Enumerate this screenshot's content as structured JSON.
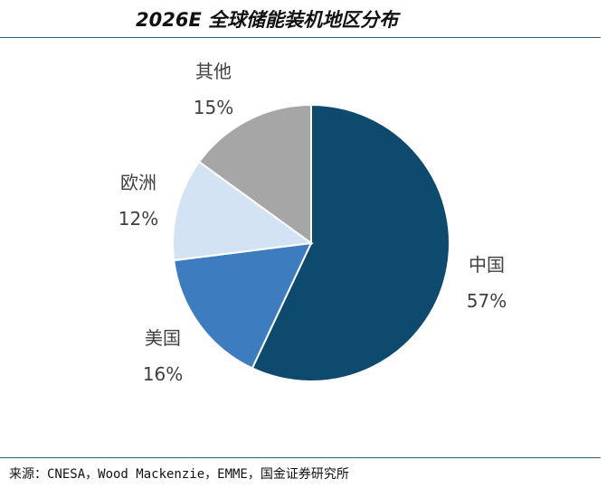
{
  "header": {
    "title": "2026E 全球储能装机地区分布"
  },
  "footer": {
    "source": "来源：CNESA，Wood Mackenzie，EMME，国金证券研究所"
  },
  "chart_data": {
    "type": "pie",
    "title": "2026E 全球储能装机地区分布",
    "slices": [
      {
        "name": "中国",
        "value": 57,
        "label": "57%",
        "color": "#0d4a6e"
      },
      {
        "name": "美国",
        "value": 16,
        "label": "16%",
        "color": "#3e7cc0"
      },
      {
        "name": "欧洲",
        "value": 12,
        "label": "12%",
        "color": "#d3e3f4"
      },
      {
        "name": "其他",
        "value": 15,
        "label": "15%",
        "color": "#a6a6a6"
      }
    ],
    "start": "12 o'clock",
    "direction": "clockwise",
    "legend": "none",
    "labels": "outside"
  }
}
